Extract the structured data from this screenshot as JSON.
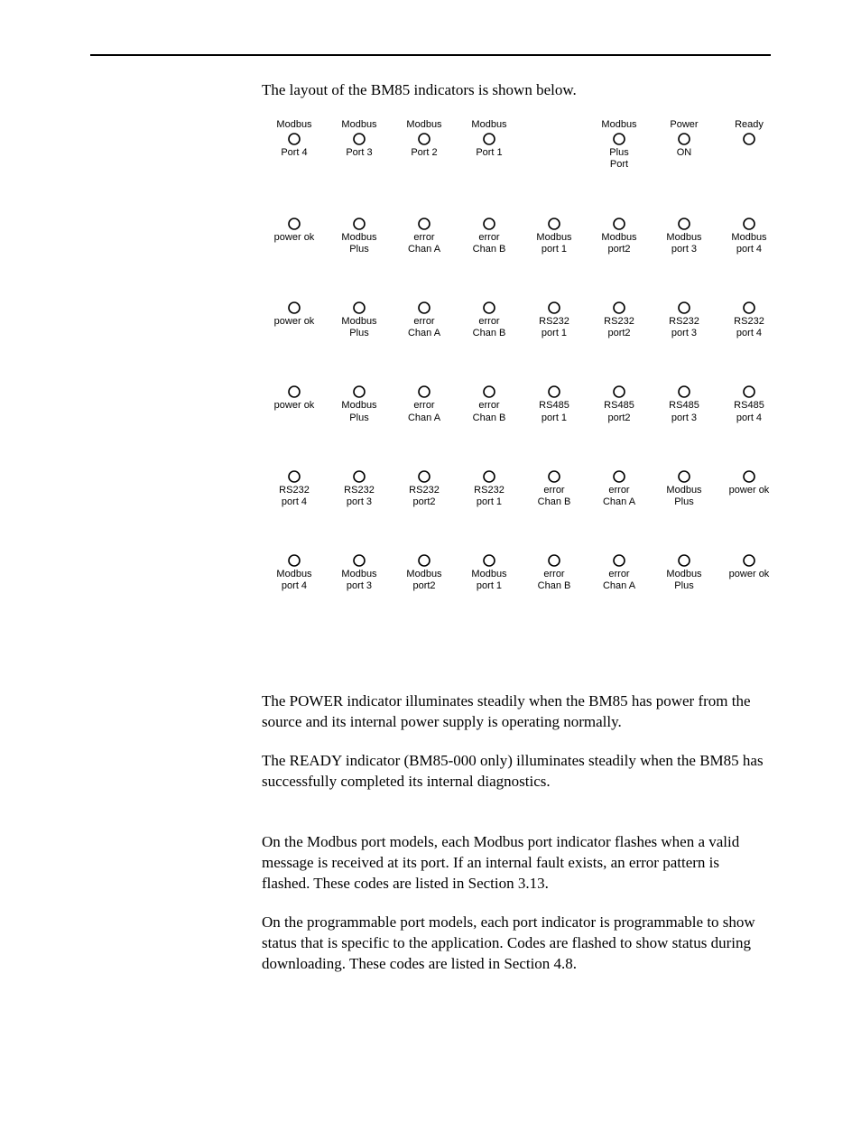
{
  "rule_color": "#000000",
  "intro": "The layout of the BM85 indicators is shown below.",
  "indicator": {
    "circle_stroke": "#000000",
    "circle_fill": "#ffffff",
    "circle_r": 6,
    "stroke_width": 1.6
  },
  "rows": [
    [
      {
        "top": "Modbus",
        "bot": "Port 4"
      },
      {
        "top": "Modbus",
        "bot": "Port 3"
      },
      {
        "top": "Modbus",
        "bot": "Port 2"
      },
      {
        "top": "Modbus",
        "bot": "Port 1"
      },
      null,
      {
        "top": "Modbus",
        "bot": "Plus\nPort"
      },
      {
        "top": "Power",
        "bot": "ON"
      },
      {
        "top": "Ready",
        "bot": ""
      }
    ],
    [
      {
        "top": "",
        "bot": "power ok"
      },
      {
        "top": "",
        "bot": "Modbus\nPlus"
      },
      {
        "top": "",
        "bot": "error\nChan A"
      },
      {
        "top": "",
        "bot": "error\nChan B"
      },
      {
        "top": "",
        "bot": "Modbus\nport 1"
      },
      {
        "top": "",
        "bot": "Modbus\nport2"
      },
      {
        "top": "",
        "bot": "Modbus\nport 3"
      },
      {
        "top": "",
        "bot": "Modbus\nport 4"
      }
    ],
    [
      {
        "top": "",
        "bot": "power ok"
      },
      {
        "top": "",
        "bot": "Modbus\nPlus"
      },
      {
        "top": "",
        "bot": "error\nChan A"
      },
      {
        "top": "",
        "bot": "error\nChan B"
      },
      {
        "top": "",
        "bot": "RS232\nport 1"
      },
      {
        "top": "",
        "bot": "RS232\nport2"
      },
      {
        "top": "",
        "bot": "RS232\nport 3"
      },
      {
        "top": "",
        "bot": "RS232\nport 4"
      }
    ],
    [
      {
        "top": "",
        "bot": "power ok"
      },
      {
        "top": "",
        "bot": "Modbus\nPlus"
      },
      {
        "top": "",
        "bot": "error\nChan A"
      },
      {
        "top": "",
        "bot": "error\nChan B"
      },
      {
        "top": "",
        "bot": "RS485\nport 1"
      },
      {
        "top": "",
        "bot": "RS485\nport2"
      },
      {
        "top": "",
        "bot": "RS485\nport 3"
      },
      {
        "top": "",
        "bot": "RS485\nport 4"
      }
    ],
    [
      {
        "top": "",
        "bot": "RS232\nport 4"
      },
      {
        "top": "",
        "bot": "RS232\nport 3"
      },
      {
        "top": "",
        "bot": "RS232\nport2"
      },
      {
        "top": "",
        "bot": "RS232\nport 1"
      },
      {
        "top": "",
        "bot": "error\nChan B"
      },
      {
        "top": "",
        "bot": "error\nChan A"
      },
      {
        "top": "",
        "bot": "Modbus\nPlus"
      },
      {
        "top": "",
        "bot": "power ok"
      }
    ],
    [
      {
        "top": "",
        "bot": "Modbus\nport 4"
      },
      {
        "top": "",
        "bot": "Modbus\nport 3"
      },
      {
        "top": "",
        "bot": "Modbus\nport2"
      },
      {
        "top": "",
        "bot": "Modbus\nport 1"
      },
      {
        "top": "",
        "bot": "error\nChan B"
      },
      {
        "top": "",
        "bot": "error\nChan A"
      },
      {
        "top": "",
        "bot": "Modbus\nPlus"
      },
      {
        "top": "",
        "bot": "power ok"
      }
    ]
  ],
  "paragraphs": [
    "The POWER indicator illuminates steadily when the BM85 has power from the source and its internal power supply is operating normally.",
    "The READY indicator (BM85-000 only) illuminates steadily when the BM85 has successfully completed its internal diagnostics.",
    "On the Modbus port models, each Modbus port indicator flashes when a valid message is received at its port.  If an internal fault exists, an error pattern is flashed.  These codes are listed in Section 3.13.",
    "On the programmable port models, each port indicator is programmable to show status that is specific to the application.  Codes are flashed to show status during downloading.  These codes are listed in Section 4.8."
  ]
}
